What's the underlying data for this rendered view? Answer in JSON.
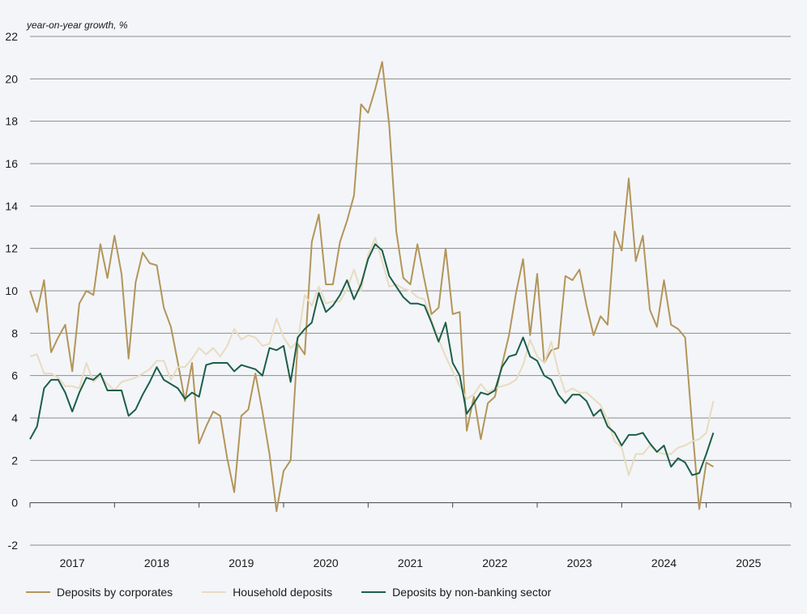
{
  "chart_data": {
    "type": "line",
    "ylabel": "year-on-year growth, %",
    "ylim": [
      -2,
      22
    ],
    "yticks": [
      -2,
      0,
      2,
      4,
      6,
      8,
      10,
      12,
      14,
      16,
      18,
      20,
      22
    ],
    "xlim": [
      2016.5,
      2025.5
    ],
    "xticks": [
      {
        "label": "2017",
        "center": 2017
      },
      {
        "label": "2018",
        "center": 2018
      },
      {
        "label": "2019",
        "center": 2019
      },
      {
        "label": "2020",
        "center": 2020
      },
      {
        "label": "2021",
        "center": 2021
      },
      {
        "label": "2022",
        "center": 2022
      },
      {
        "label": "2023",
        "center": 2023
      },
      {
        "label": "2024",
        "center": 2024
      },
      {
        "label": "2025",
        "center": 2025
      }
    ],
    "x_start": "2016-07",
    "grid": true,
    "legend_position": "bottom",
    "series": [
      {
        "name": "Deposits by corporates",
        "color": "#b3955a",
        "values": [
          10.0,
          9.0,
          10.5,
          7.1,
          7.8,
          8.4,
          6.2,
          9.4,
          10.0,
          9.8,
          12.2,
          10.6,
          12.6,
          10.8,
          6.8,
          10.4,
          11.8,
          11.3,
          11.2,
          9.2,
          8.3,
          6.6,
          4.8,
          6.6,
          2.8,
          3.6,
          4.3,
          4.1,
          2.1,
          0.5,
          4.1,
          4.4,
          6.1,
          4.3,
          2.3,
          -0.4,
          1.5,
          2.0,
          7.5,
          7.0,
          12.3,
          13.6,
          10.3,
          10.3,
          12.3,
          13.3,
          14.5,
          18.8,
          18.4,
          19.5,
          20.8,
          17.8,
          12.8,
          10.6,
          10.3,
          12.2,
          10.5,
          8.9,
          9.2,
          12.0,
          8.9,
          9.0,
          3.4,
          5.0,
          3.0,
          4.7,
          5.0,
          6.5,
          7.9,
          9.9,
          11.5,
          7.9,
          10.8,
          6.6,
          7.2,
          7.3,
          10.7,
          10.5,
          11.0,
          9.3,
          7.9,
          8.8,
          8.4,
          12.8,
          11.9,
          15.3,
          11.4,
          12.6,
          9.1,
          8.3,
          10.5,
          8.4,
          8.2,
          7.8,
          3.6,
          -0.3,
          1.9,
          1.7
        ]
      },
      {
        "name": "Household deposits",
        "color": "#e8dcbf",
        "values": [
          6.9,
          7.0,
          6.1,
          6.1,
          5.9,
          5.5,
          5.5,
          5.4,
          6.6,
          5.7,
          6.0,
          5.6,
          5.3,
          5.7,
          5.8,
          5.9,
          6.1,
          6.3,
          6.7,
          6.7,
          5.8,
          6.4,
          6.4,
          6.8,
          7.3,
          7.0,
          7.3,
          6.9,
          7.4,
          8.2,
          7.7,
          7.9,
          7.8,
          7.4,
          7.5,
          8.7,
          7.8,
          7.3,
          7.6,
          9.8,
          9.3,
          10.2,
          9.4,
          9.5,
          9.5,
          10.1,
          11.0,
          10.0,
          11.7,
          12.5,
          11.4,
          10.2,
          10.3,
          10.1,
          10.0,
          9.7,
          9.6,
          8.6,
          7.7,
          6.9,
          6.2,
          5.5,
          4.9,
          5.1,
          5.6,
          5.2,
          5.4,
          5.5,
          5.6,
          5.8,
          6.5,
          7.7,
          6.9,
          6.6,
          7.6,
          6.2,
          5.2,
          5.4,
          5.2,
          5.2,
          4.9,
          4.6,
          3.9,
          2.9,
          2.6,
          1.3,
          2.3,
          2.3,
          2.7,
          2.4,
          2.3,
          2.3,
          2.6,
          2.7,
          2.9,
          3.0,
          3.3,
          4.8
        ]
      },
      {
        "name": "Deposits by non-banking sector",
        "color": "#1c5e49",
        "values": [
          3.0,
          3.6,
          5.4,
          5.8,
          5.8,
          5.2,
          4.3,
          5.2,
          5.9,
          5.8,
          6.1,
          5.3,
          5.3,
          5.3,
          4.1,
          4.4,
          5.1,
          5.7,
          6.4,
          5.8,
          5.6,
          5.4,
          4.9,
          5.2,
          5.0,
          6.5,
          6.6,
          6.6,
          6.6,
          6.2,
          6.5,
          6.4,
          6.3,
          6.0,
          7.3,
          7.2,
          7.4,
          5.7,
          7.8,
          8.2,
          8.5,
          9.9,
          9.0,
          9.3,
          9.8,
          10.5,
          9.6,
          10.3,
          11.5,
          12.2,
          11.9,
          10.7,
          10.2,
          9.7,
          9.4,
          9.4,
          9.3,
          8.5,
          7.6,
          8.5,
          6.6,
          6.0,
          4.2,
          4.7,
          5.2,
          5.1,
          5.3,
          6.4,
          6.9,
          7.0,
          7.8,
          6.9,
          6.7,
          6.0,
          5.8,
          5.1,
          4.7,
          5.1,
          5.1,
          4.8,
          4.1,
          4.4,
          3.6,
          3.3,
          2.7,
          3.2,
          3.2,
          3.3,
          2.8,
          2.4,
          2.7,
          1.7,
          2.1,
          1.9,
          1.3,
          1.4,
          2.3,
          3.3
        ]
      }
    ]
  }
}
